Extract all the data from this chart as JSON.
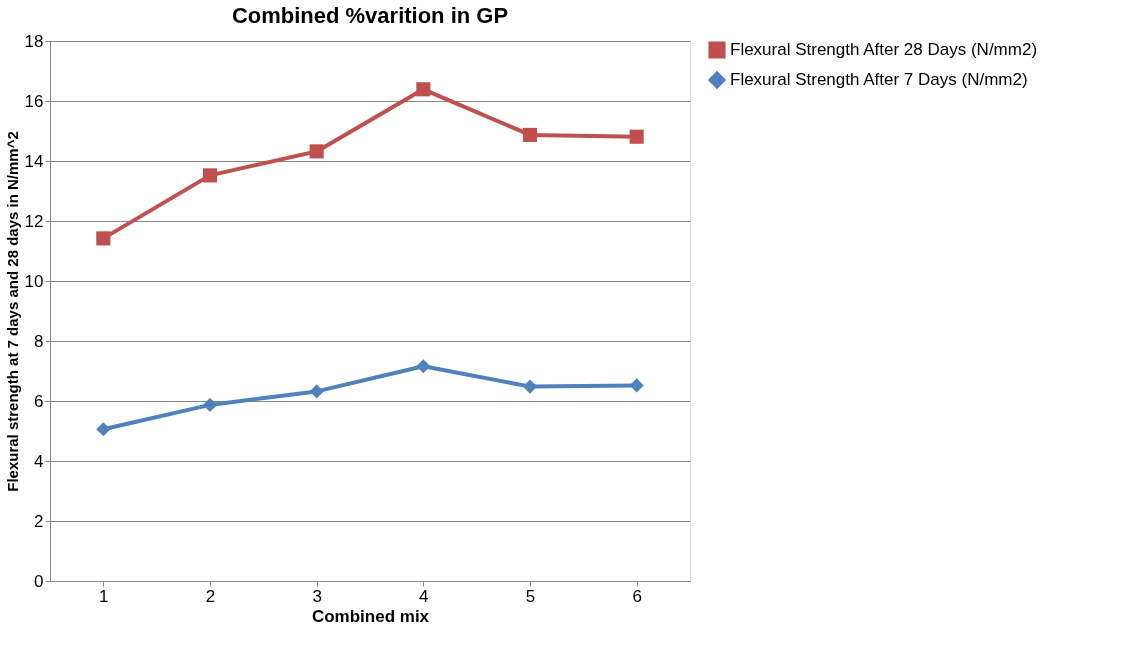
{
  "chart_data": {
    "type": "line",
    "title": "Combined %varition in GP",
    "xlabel": "Combined mix",
    "ylabel": "Flexural strength at 7 days and 28 days in N/mm^2",
    "categories": [
      "1",
      "2",
      "3",
      "4",
      "5",
      "6"
    ],
    "series": [
      {
        "name": "Flexural Strength After 28 Days (N/mm2)",
        "color": "#c0504d",
        "marker": "square",
        "values": [
          11.42,
          13.52,
          14.32,
          16.39,
          14.87,
          14.81
        ]
      },
      {
        "name": "Flexural Strength After 7 Days (N/mm2)",
        "color": "#4f81bd",
        "marker": "diamond",
        "values": [
          5.06,
          5.87,
          6.32,
          7.16,
          6.48,
          6.52
        ]
      }
    ],
    "ylim": [
      0,
      18
    ],
    "yticks": [
      0,
      2,
      4,
      6,
      8,
      10,
      12,
      14,
      16,
      18
    ],
    "grid": "y",
    "legend": "right",
    "line_style": "solid"
  }
}
